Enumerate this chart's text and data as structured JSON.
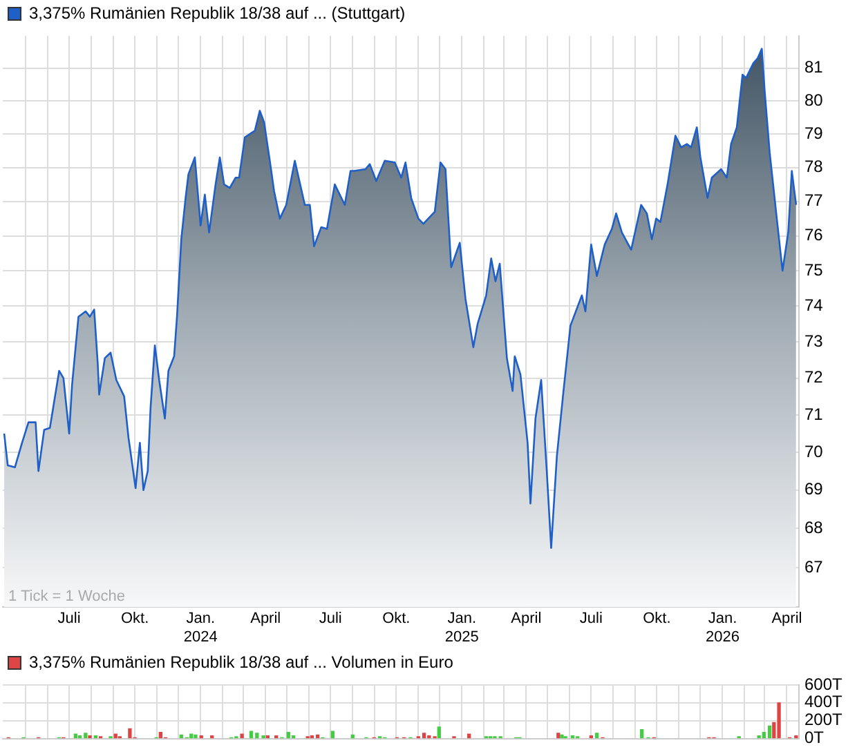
{
  "chart_data": [
    {
      "type": "area",
      "x": [
        "2023-04-01",
        "2023-04-06",
        "2023-04-16",
        "2023-04-26",
        "2023-05-05",
        "2023-05-15",
        "2023-05-19",
        "2023-05-27",
        "2023-06-04",
        "2023-06-17",
        "2023-06-23",
        "2023-07-01",
        "2023-07-05",
        "2023-07-14",
        "2023-07-24",
        "2023-07-30",
        "2023-08-05",
        "2023-08-10",
        "2023-08-12",
        "2023-08-20",
        "2023-08-28",
        "2023-09-05",
        "2023-09-16",
        "2023-09-22",
        "2023-10-02",
        "2023-10-08",
        "2023-10-13",
        "2023-10-19",
        "2023-10-23",
        "2023-10-29",
        "2023-11-04",
        "2023-11-12",
        "2023-11-17",
        "2023-11-25",
        "2023-11-29",
        "2023-12-05",
        "2023-12-11",
        "2023-12-15",
        "2023-12-24",
        "2024-01-01",
        "2024-01-07",
        "2024-01-13",
        "2024-01-22",
        "2024-01-28",
        "2024-02-03",
        "2024-02-11",
        "2024-02-19",
        "2024-02-24",
        "2024-03-03",
        "2024-03-17",
        "2024-03-24",
        "2024-03-30",
        "2024-04-07",
        "2024-04-13",
        "2024-04-21",
        "2024-04-30",
        "2024-05-12",
        "2024-05-26",
        "2024-06-02",
        "2024-06-08",
        "2024-06-18",
        "2024-06-26",
        "2024-07-07",
        "2024-07-21",
        "2024-07-29",
        "2024-08-03",
        "2024-08-19",
        "2024-08-25",
        "2024-09-03",
        "2024-09-15",
        "2024-09-29",
        "2024-10-08",
        "2024-10-14",
        "2024-10-22",
        "2024-11-01",
        "2024-11-08",
        "2024-11-24",
        "2024-12-02",
        "2024-12-09",
        "2024-12-17",
        "2024-12-29",
        "2025-01-06",
        "2025-01-17",
        "2025-01-23",
        "2025-02-04",
        "2025-02-11",
        "2025-02-17",
        "2025-02-23",
        "2025-03-05",
        "2025-03-13",
        "2025-03-16",
        "2025-03-24",
        "2025-04-03",
        "2025-04-07",
        "2025-04-14",
        "2025-04-22",
        "2025-04-30",
        "2025-05-06",
        "2025-05-14",
        "2025-05-23",
        "2025-06-02",
        "2025-06-18",
        "2025-06-23",
        "2025-07-01",
        "2025-07-09",
        "2025-07-20",
        "2025-07-30",
        "2025-08-05",
        "2025-08-13",
        "2025-08-26",
        "2025-09-09",
        "2025-09-17",
        "2025-09-24",
        "2025-09-30",
        "2025-10-06",
        "2025-10-16",
        "2025-10-27",
        "2025-11-04",
        "2025-11-12",
        "2025-11-18",
        "2025-11-26",
        "2025-12-01",
        "2025-12-11",
        "2025-12-17",
        "2025-12-30",
        "2026-01-07",
        "2026-01-13",
        "2026-01-21",
        "2026-01-29",
        "2026-02-03",
        "2026-02-13",
        "2026-02-19",
        "2026-02-25",
        "2026-03-01",
        "2026-03-08",
        "2026-03-18",
        "2026-03-26",
        "2026-04-03",
        "2026-04-08",
        "2026-04-14"
      ],
      "series": [
        {
          "name": "3,375% Rumänien Republik 18/38 auf ... (Stuttgart)",
          "color": "#1f5fc8",
          "values": [
            70.5,
            69.65,
            69.6,
            70.25,
            70.8,
            70.8,
            69.5,
            70.6,
            70.65,
            72.2,
            72.0,
            70.5,
            71.8,
            73.7,
            73.85,
            73.7,
            73.9,
            72.4,
            71.55,
            72.55,
            72.7,
            71.95,
            71.5,
            70.4,
            69.05,
            70.25,
            69.0,
            69.5,
            71.2,
            72.9,
            71.95,
            70.9,
            72.2,
            72.6,
            73.7,
            75.9,
            77.1,
            77.8,
            78.3,
            76.3,
            77.2,
            76.1,
            77.5,
            78.3,
            77.5,
            77.4,
            77.7,
            77.7,
            78.9,
            79.1,
            79.7,
            79.35,
            78.2,
            77.3,
            76.5,
            76.9,
            78.2,
            76.9,
            76.9,
            75.7,
            76.25,
            76.2,
            77.5,
            76.9,
            77.9,
            77.9,
            77.95,
            78.1,
            77.6,
            78.2,
            78.15,
            77.7,
            78.15,
            77.1,
            76.5,
            76.35,
            76.7,
            78.15,
            77.95,
            75.1,
            75.8,
            74.2,
            72.85,
            73.5,
            74.3,
            75.35,
            74.7,
            75.2,
            72.55,
            71.65,
            72.6,
            72.1,
            70.25,
            68.65,
            70.9,
            71.95,
            69.45,
            67.5,
            69.9,
            71.6,
            73.45,
            74.3,
            73.85,
            75.75,
            74.85,
            75.75,
            76.2,
            76.65,
            76.1,
            75.6,
            76.9,
            76.65,
            75.9,
            76.5,
            76.4,
            77.5,
            78.95,
            78.6,
            78.7,
            78.6,
            79.2,
            78.3,
            77.1,
            77.7,
            77.95,
            77.7,
            78.7,
            79.2,
            80.8,
            80.7,
            81.15,
            81.3,
            81.6,
            80.3,
            78.45,
            76.5,
            75.0,
            76.1,
            77.9,
            76.9
          ]
        }
      ],
      "xlim": [
        "2023-03-30",
        "2026-04-18"
      ],
      "xticks": [
        {
          "value": "2023-05-01",
          "label": null
        },
        {
          "value": "2023-06-01",
          "label": null
        },
        {
          "value": "2023-07-01",
          "label": "Juli"
        },
        {
          "value": "2023-08-01",
          "label": null
        },
        {
          "value": "2023-09-01",
          "label": null
        },
        {
          "value": "2023-10-01",
          "label": "Okt."
        },
        {
          "value": "2023-11-01",
          "label": null
        },
        {
          "value": "2023-12-01",
          "label": null
        },
        {
          "value": "2024-01-01",
          "label": "Jan.\n2024"
        },
        {
          "value": "2024-02-01",
          "label": null
        },
        {
          "value": "2024-03-01",
          "label": null
        },
        {
          "value": "2024-04-01",
          "label": "April"
        },
        {
          "value": "2024-05-01",
          "label": null
        },
        {
          "value": "2024-06-01",
          "label": null
        },
        {
          "value": "2024-07-01",
          "label": "Juli"
        },
        {
          "value": "2024-08-01",
          "label": null
        },
        {
          "value": "2024-09-01",
          "label": null
        },
        {
          "value": "2024-10-01",
          "label": "Okt."
        },
        {
          "value": "2024-11-01",
          "label": null
        },
        {
          "value": "2024-12-01",
          "label": null
        },
        {
          "value": "2025-01-01",
          "label": "Jan.\n2025"
        },
        {
          "value": "2025-02-01",
          "label": null
        },
        {
          "value": "2025-03-01",
          "label": null
        },
        {
          "value": "2025-04-01",
          "label": "April"
        },
        {
          "value": "2025-05-01",
          "label": null
        },
        {
          "value": "2025-06-01",
          "label": null
        },
        {
          "value": "2025-07-01",
          "label": "Juli"
        },
        {
          "value": "2025-08-01",
          "label": null
        },
        {
          "value": "2025-09-01",
          "label": null
        },
        {
          "value": "2025-10-01",
          "label": "Okt."
        },
        {
          "value": "2025-11-01",
          "label": null
        },
        {
          "value": "2025-12-01",
          "label": null
        },
        {
          "value": "2026-01-01",
          "label": "Jan.\n2026"
        },
        {
          "value": "2026-02-01",
          "label": null
        },
        {
          "value": "2026-03-01",
          "label": null
        },
        {
          "value": "2026-04-01",
          "label": "April"
        }
      ],
      "ylim": [
        66,
        82
      ],
      "yticks": [
        67,
        68,
        69,
        70,
        71,
        72,
        73,
        74,
        75,
        76,
        77,
        78,
        79,
        80,
        81
      ],
      "log": "y",
      "grid": true,
      "legend": "top left",
      "annotations": [
        "1 Tick = 1 Woche"
      ]
    },
    {
      "type": "bar",
      "x": [
        "2023-04-07",
        "2023-04-28",
        "2023-05-19",
        "2023-06-17",
        "2023-06-23",
        "2023-07-10",
        "2023-07-16",
        "2023-07-24",
        "2023-07-30",
        "2023-08-07",
        "2023-08-14",
        "2023-08-28",
        "2023-09-04",
        "2023-09-10",
        "2023-09-24",
        "2023-10-01",
        "2023-10-31",
        "2023-11-06",
        "2023-11-13",
        "2023-12-05",
        "2023-12-13",
        "2023-12-19",
        "2023-12-25",
        "2024-01-02",
        "2024-01-17",
        "2024-02-13",
        "2024-02-20",
        "2024-02-28",
        "2024-03-12",
        "2024-03-20",
        "2024-03-29",
        "2024-04-04",
        "2024-04-16",
        "2024-04-24",
        "2024-05-03",
        "2024-05-10",
        "2024-05-30",
        "2024-06-05",
        "2024-06-13",
        "2024-06-20",
        "2024-07-04",
        "2024-08-01",
        "2024-08-20",
        "2024-08-31",
        "2024-09-08",
        "2024-09-15",
        "2024-10-02",
        "2024-10-12",
        "2024-10-21",
        "2024-11-01",
        "2024-11-09",
        "2024-11-16",
        "2024-11-24",
        "2024-11-30",
        "2024-12-21",
        "2025-01-11",
        "2025-02-04",
        "2025-02-10",
        "2025-02-16",
        "2025-02-24",
        "2025-03-18",
        "2025-03-23",
        "2025-05-16",
        "2025-05-21",
        "2025-05-26",
        "2025-06-05",
        "2025-06-12",
        "2025-07-01",
        "2025-07-09",
        "2025-07-17",
        "2025-09-10",
        "2025-09-19",
        "2025-09-27",
        "2025-12-13",
        "2025-12-20",
        "2026-01-24",
        "2026-02-21",
        "2026-02-28",
        "2026-03-08",
        "2026-03-14",
        "2026-03-21",
        "2026-04-05",
        "2026-04-14"
      ],
      "series": [
        {
          "name": "3,375% Rumänien Republik 18/38 auf ... Volumen in Euro",
          "color": "#dd4444",
          "colors": [
            "#dd4444",
            "#44cc44",
            "#dd4444",
            "#44cc44",
            "#dd4444",
            "#44cc44",
            "#44cc44",
            "#44cc44",
            "#dd4444",
            "#44cc44",
            "#dd4444",
            "#44cc44",
            "#dd4444",
            "#dd4444",
            "#dd4444",
            "#dd4444",
            "#44cc44",
            "#dd4444",
            "#dd4444",
            "#44cc44",
            "#44cc44",
            "#44cc44",
            "#44cc44",
            "#dd4444",
            "#dd4444",
            "#44cc44",
            "#44cc44",
            "#dd4444",
            "#44cc44",
            "#44cc44",
            "#44cc44",
            "#dd4444",
            "#dd4444",
            "#44cc44",
            "#44cc44",
            "#44cc44",
            "#dd4444",
            "#dd4444",
            "#dd4444",
            "#44cc44",
            "#44cc44",
            "#44cc44",
            "#44cc44",
            "#dd4444",
            "#44cc44",
            "#44cc44",
            "#dd4444",
            "#dd4444",
            "#44cc44",
            "#dd4444",
            "#dd4444",
            "#dd4444",
            "#dd4444",
            "#44cc44",
            "#dd4444",
            "#dd4444",
            "#44cc44",
            "#44cc44",
            "#44cc44",
            "#44cc44",
            "#44cc44",
            "#44cc44",
            "#dd4444",
            "#44cc44",
            "#44cc44",
            "#44cc44",
            "#44cc44",
            "#dd4444",
            "#44cc44",
            "#dd4444",
            "#44cc44",
            "#44cc44",
            "#dd4444",
            "#dd4444",
            "#dd4444",
            "#44cc44",
            "#44cc44",
            "#44cc44",
            "#44cc44",
            "#dd4444",
            "#dd4444",
            "#dd4444",
            "#dd4444"
          ],
          "values": [
            10,
            10,
            10,
            10,
            10,
            50,
            30,
            60,
            30,
            30,
            20,
            20,
            50,
            20,
            110,
            10,
            10,
            70,
            10,
            40,
            10,
            50,
            40,
            30,
            30,
            10,
            20,
            50,
            80,
            60,
            30,
            30,
            30,
            10,
            70,
            30,
            20,
            30,
            40,
            10,
            80,
            40,
            10,
            10,
            20,
            10,
            10,
            10,
            10,
            20,
            60,
            30,
            20,
            130,
            20,
            50,
            20,
            20,
            20,
            20,
            10,
            10,
            60,
            40,
            20,
            30,
            20,
            30,
            60,
            10,
            100,
            10,
            10,
            10,
            10,
            20,
            30,
            70,
            140,
            180,
            400,
            10,
            30
          ]
        }
      ],
      "xlim": [
        "2023-03-30",
        "2026-04-18"
      ],
      "xticks": [
        {
          "value": "2023-05-01",
          "label": null
        },
        {
          "value": "2023-06-01",
          "label": null
        },
        {
          "value": "2023-07-01",
          "label": null
        },
        {
          "value": "2023-08-01",
          "label": null
        },
        {
          "value": "2023-09-01",
          "label": null
        },
        {
          "value": "2023-10-01",
          "label": null
        },
        {
          "value": "2023-11-01",
          "label": null
        },
        {
          "value": "2023-12-01",
          "label": null
        },
        {
          "value": "2024-01-01",
          "label": null
        },
        {
          "value": "2024-02-01",
          "label": null
        },
        {
          "value": "2024-03-01",
          "label": null
        },
        {
          "value": "2024-04-01",
          "label": null
        },
        {
          "value": "2024-05-01",
          "label": null
        },
        {
          "value": "2024-06-01",
          "label": null
        },
        {
          "value": "2024-07-01",
          "label": null
        },
        {
          "value": "2024-08-01",
          "label": null
        },
        {
          "value": "2024-09-01",
          "label": null
        },
        {
          "value": "2024-10-01",
          "label": null
        },
        {
          "value": "2024-11-01",
          "label": null
        },
        {
          "value": "2024-12-01",
          "label": null
        },
        {
          "value": "2025-01-01",
          "label": null
        },
        {
          "value": "2025-02-01",
          "label": null
        },
        {
          "value": "2025-03-01",
          "label": null
        },
        {
          "value": "2025-04-01",
          "label": null
        },
        {
          "value": "2025-05-01",
          "label": null
        },
        {
          "value": "2025-06-01",
          "label": null
        },
        {
          "value": "2025-07-01",
          "label": null
        },
        {
          "value": "2025-08-01",
          "label": null
        },
        {
          "value": "2025-09-01",
          "label": null
        },
        {
          "value": "2025-10-01",
          "label": null
        },
        {
          "value": "2025-11-01",
          "label": null
        },
        {
          "value": "2025-12-01",
          "label": null
        },
        {
          "value": "2026-01-01",
          "label": null
        },
        {
          "value": "2026-02-01",
          "label": null
        },
        {
          "value": "2026-03-01",
          "label": null
        },
        {
          "value": "2026-04-01",
          "label": null
        }
      ],
      "ylim": [
        0,
        600
      ],
      "yticks": [
        {
          "value": 0,
          "label": "0T"
        },
        {
          "value": 200,
          "label": "200T"
        },
        {
          "value": 400,
          "label": "400T"
        },
        {
          "value": 600,
          "label": "600T"
        }
      ],
      "grid": true,
      "legend": "top left",
      "tick_labels": "y"
    }
  ]
}
